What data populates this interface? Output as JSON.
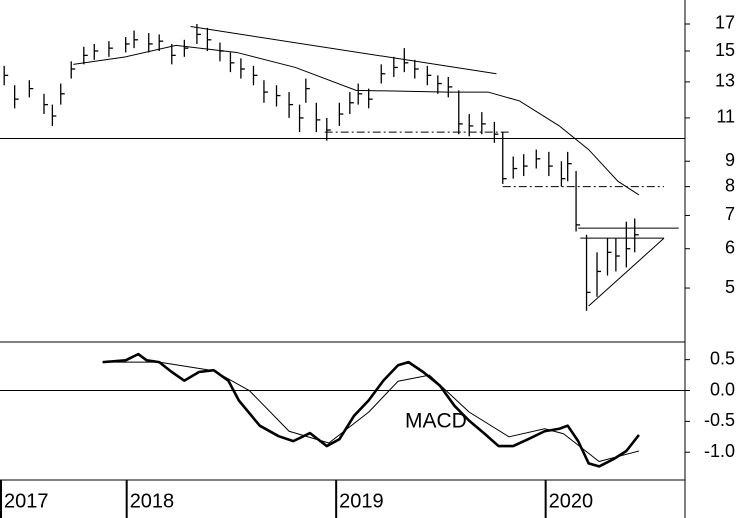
{
  "chart_data": [
    {
      "type": "ohlc",
      "color": "#000000",
      "log_scale": true,
      "xlim": [
        2017.4,
        2020.67
      ],
      "ylim": [
        3.93,
        19.0
      ],
      "yticks": [
        5,
        6,
        7,
        8,
        9,
        11,
        13,
        15,
        17
      ],
      "x": [
        2017.42,
        2017.47,
        2017.54,
        2017.61,
        2017.65,
        2017.69,
        2017.74,
        2017.8,
        2017.85,
        2017.92,
        2018.0,
        2018.04,
        2018.11,
        2018.16,
        2018.22,
        2018.28,
        2018.34,
        2018.39,
        2018.45,
        2018.5,
        2018.55,
        2018.61,
        2018.66,
        2018.72,
        2018.78,
        2018.83,
        2018.86,
        2018.91,
        2018.96,
        2019.02,
        2019.07,
        2019.11,
        2019.16,
        2019.22,
        2019.28,
        2019.33,
        2019.38,
        2019.44,
        2019.49,
        2019.54,
        2019.59,
        2019.64,
        2019.7,
        2019.76,
        2019.8,
        2019.85,
        2019.9,
        2019.96,
        2020.02,
        2020.08,
        2020.11,
        2020.15,
        2020.2,
        2020.25,
        2020.3,
        2020.34,
        2020.39,
        2020.43
      ],
      "high": [
        14.0,
        12.8,
        13.1,
        12.3,
        11.7,
        12.9,
        14.3,
        15.3,
        15.5,
        15.7,
        16.0,
        16.5,
        16.3,
        16.2,
        15.5,
        15.8,
        17.0,
        16.7,
        15.6,
        14.9,
        14.5,
        14.0,
        13.1,
        12.8,
        12.4,
        11.7,
        13.2,
        11.8,
        11.0,
        11.8,
        12.4,
        12.9,
        12.6,
        14.1,
        14.6,
        15.2,
        14.4,
        14.0,
        13.4,
        13.3,
        12.5,
        11.2,
        11.3,
        10.8,
        10.3,
        9.2,
        9.3,
        9.5,
        9.4,
        9.0,
        9.4,
        8.6,
        6.4,
        5.9,
        6.3,
        6.3,
        6.8,
        6.9
      ],
      "low": [
        12.8,
        11.5,
        12.1,
        11.2,
        10.6,
        11.7,
        13.2,
        14.1,
        14.4,
        14.6,
        14.9,
        15.2,
        14.9,
        15.0,
        14.1,
        14.6,
        15.5,
        15.0,
        14.3,
        13.6,
        13.2,
        12.8,
        11.8,
        11.6,
        11.0,
        10.3,
        11.8,
        10.3,
        9.9,
        10.6,
        11.2,
        11.7,
        11.5,
        12.9,
        13.3,
        13.6,
        13.2,
        12.8,
        12.3,
        12.1,
        10.2,
        10.1,
        10.2,
        9.8,
        8.1,
        8.3,
        8.4,
        8.7,
        8.4,
        8.0,
        8.2,
        6.5,
        4.5,
        4.8,
        5.3,
        5.4,
        5.5,
        5.9
      ],
      "close": [
        13.4,
        12.0,
        12.6,
        11.7,
        11.1,
        12.3,
        13.8,
        14.7,
        15.0,
        15.2,
        15.5,
        15.8,
        15.5,
        15.7,
        14.7,
        15.2,
        16.2,
        15.8,
        15.0,
        14.2,
        13.8,
        13.4,
        12.4,
        12.2,
        11.7,
        11.0,
        12.6,
        10.9,
        10.4,
        11.2,
        11.8,
        12.3,
        12.0,
        13.5,
        13.9,
        14.2,
        13.8,
        13.4,
        12.9,
        12.7,
        10.7,
        10.6,
        10.7,
        10.2,
        8.3,
        8.7,
        8.8,
        9.1,
        8.8,
        8.3,
        8.9,
        6.7,
        4.9,
        5.4,
        5.9,
        5.8,
        6.0,
        6.4
      ],
      "lines": [
        {
          "x": [
            2017.75,
            2018.0,
            2018.24,
            2018.53,
            2018.81,
            2019.1,
            2019.54,
            2019.73,
            2019.88,
            2020.07,
            2020.21,
            2020.35,
            2020.45
          ],
          "values": [
            14.1,
            14.6,
            15.4,
            14.9,
            13.9,
            12.5,
            12.4,
            12.4,
            11.9,
            10.6,
            9.5,
            8.2,
            7.7
          ],
          "dash": "solid",
          "width": 1
        },
        {
          "x": [
            2018.31,
            2019.77
          ],
          "values": [
            16.8,
            13.5
          ],
          "dash": "solid",
          "width": 1
        },
        {
          "x": [
            2017.4,
            2020.67
          ],
          "values": [
            10.0,
            10.0
          ],
          "dash": "solid",
          "width": 1
        },
        {
          "x": [
            2018.95,
            2019.83
          ],
          "values": [
            10.3,
            10.3
          ],
          "dash": "dashdot",
          "width": 1
        },
        {
          "x": [
            2019.8,
            2020.57
          ],
          "values": [
            8.0,
            8.0
          ],
          "dash": "dashdot",
          "width": 1
        },
        {
          "x": [
            2020.16,
            2020.64
          ],
          "values": [
            6.6,
            6.6
          ],
          "dash": "solid",
          "width": 1
        },
        {
          "x": [
            2020.17,
            2020.57
          ],
          "values": [
            6.3,
            6.3
          ],
          "dash": "solid",
          "width": 1
        },
        {
          "x": [
            2020.21,
            2020.57
          ],
          "values": [
            4.6,
            6.3
          ],
          "dash": "solid",
          "width": 1
        }
      ]
    },
    {
      "type": "line",
      "annotation": "MACD",
      "zero_line": true,
      "xlim": [
        2017.4,
        2020.67
      ],
      "ylim": [
        -1.45,
        0.77
      ],
      "xticks": [
        {
          "value": 2017.4,
          "label": "2017"
        },
        2018,
        2019,
        2020
      ],
      "yticks": [
        0.5,
        {
          "value": 0,
          "label": "0.0"
        },
        -0.5,
        {
          "value": -1,
          "label": "-1.0"
        }
      ],
      "series": [
        {
          "color": "#000000",
          "line_width": 2.6,
          "x": [
            2017.89,
            2018.0,
            2018.06,
            2018.1,
            2018.16,
            2018.22,
            2018.28,
            2018.35,
            2018.42,
            2018.49,
            2018.54,
            2018.64,
            2018.73,
            2018.8,
            2018.88,
            2018.96,
            2019.02,
            2019.09,
            2019.16,
            2019.23,
            2019.3,
            2019.35,
            2019.42,
            2019.5,
            2019.57,
            2019.64,
            2019.71,
            2019.78,
            2019.85,
            2019.92,
            2020.0,
            2020.07,
            2020.11,
            2020.16,
            2020.21,
            2020.26,
            2020.33,
            2020.39,
            2020.45
          ],
          "values": [
            0.46,
            0.49,
            0.59,
            0.49,
            0.46,
            0.3,
            0.16,
            0.3,
            0.33,
            0.16,
            -0.16,
            -0.57,
            -0.74,
            -0.82,
            -0.69,
            -0.9,
            -0.79,
            -0.41,
            -0.16,
            0.16,
            0.41,
            0.46,
            0.3,
            0.08,
            -0.25,
            -0.49,
            -0.69,
            -0.9,
            -0.9,
            -0.79,
            -0.66,
            -0.62,
            -0.57,
            -0.82,
            -1.18,
            -1.23,
            -1.11,
            -0.98,
            -0.72
          ]
        },
        {
          "color": "#000000",
          "line_width": 1,
          "x": [
            2017.89,
            2018.16,
            2018.42,
            2018.59,
            2018.78,
            2018.97,
            2019.16,
            2019.3,
            2019.45,
            2019.64,
            2019.83,
            2020.0,
            2020.09,
            2020.26,
            2020.45
          ],
          "values": [
            0.46,
            0.46,
            0.32,
            0.0,
            -0.66,
            -0.85,
            -0.35,
            0.15,
            0.25,
            -0.35,
            -0.75,
            -0.62,
            -0.7,
            -1.15,
            -0.98
          ]
        }
      ]
    }
  ]
}
